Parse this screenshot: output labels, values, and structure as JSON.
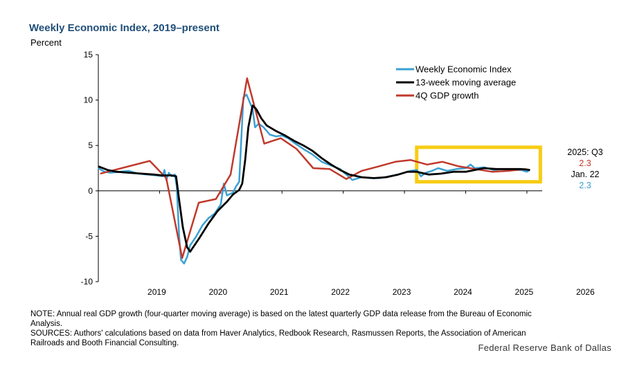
{
  "title": "Weekly Economic Index, 2019–present",
  "note": "NOTE: Annual real GDP growth (four-quarter moving average) is based on the latest quarterly GDP data release from the Bureau of Economic Analysis.",
  "sources": "SOURCES: Authors' calculations based on data from Haver Analytics, Redbook Research, Rasmussen Reports, the Association of American Railroads and Booth Financial Consulting.",
  "credit": "Federal Reserve Bank of Dallas",
  "chart_data": {
    "type": "line",
    "title": "Weekly Economic Index, 2019–present",
    "ylabel": "Percent",
    "xlabel": "",
    "xlim": [
      2018,
      2025.25
    ],
    "ylim": [
      -10,
      15
    ],
    "yticks": [
      -10,
      -5,
      0,
      5,
      10,
      15
    ],
    "xtick_labels": [
      "2019",
      "2020",
      "2021",
      "2022",
      "2023",
      "2024",
      "2025",
      "2026"
    ],
    "xtick_values": [
      2019,
      2020,
      2021,
      2022,
      2023,
      2024,
      2025,
      2026
    ],
    "grid": false,
    "legend_position": "top-right",
    "colors": {
      "wei": "#3aa0d2",
      "ma": "#000000",
      "gdp": "#c0392b",
      "highlight": "#f7cc14"
    },
    "series": [
      {
        "name": "Weekly Economic Index",
        "key": "wei",
        "x": [
          2018.0,
          2018.1,
          2018.2,
          2018.35,
          2018.5,
          2018.65,
          2018.8,
          2018.95,
          2019.05,
          2019.08,
          2019.11,
          2019.15,
          2019.2,
          2019.25,
          2019.28,
          2019.32,
          2019.35,
          2019.4,
          2019.45,
          2019.5,
          2019.6,
          2019.7,
          2019.8,
          2019.9,
          2020.0,
          2020.05,
          2020.1,
          2020.2,
          2020.25,
          2020.3,
          2020.33,
          2020.37,
          2020.42,
          2020.47,
          2020.52,
          2020.56,
          2020.62,
          2020.7,
          2020.8,
          2020.9,
          2021.0,
          2021.1,
          2021.2,
          2021.35,
          2021.5,
          2021.65,
          2021.8,
          2021.95,
          2022.05,
          2022.15,
          2022.3,
          2022.45,
          2022.6,
          2022.75,
          2022.9,
          2023.0,
          2023.1,
          2023.2,
          2023.27,
          2023.35,
          2023.45,
          2023.55,
          2023.7,
          2023.85,
          2024.0,
          2024.08,
          2024.15,
          2024.3,
          2024.45,
          2024.6,
          2024.75,
          2024.9,
          2025.0,
          2025.05
        ],
        "values": [
          2.5,
          2.1,
          2.0,
          2.1,
          2.2,
          1.9,
          1.8,
          1.7,
          1.6,
          2.3,
          1.2,
          2.0,
          1.6,
          1.8,
          0.5,
          -5,
          -7.6,
          -8.0,
          -7.3,
          -6.0,
          -5.0,
          -3.8,
          -3.0,
          -2.5,
          -1.5,
          0.8,
          -0.5,
          -0.2,
          0.5,
          1.0,
          5,
          10.3,
          10.6,
          9.8,
          9.0,
          7.0,
          7.4,
          7.0,
          6.2,
          6.0,
          6.1,
          5.8,
          5.3,
          4.6,
          4.0,
          3.2,
          2.8,
          2.4,
          1.8,
          1.2,
          1.5,
          1.4,
          1.4,
          1.6,
          1.8,
          2.0,
          2.2,
          2.3,
          1.6,
          2.0,
          2.2,
          2.5,
          2.2,
          2.4,
          2.5,
          2.9,
          2.5,
          2.6,
          2.3,
          2.4,
          2.3,
          2.3,
          2.1,
          2.3
        ]
      },
      {
        "name": "13-week moving average",
        "key": "ma",
        "x": [
          2018.0,
          2018.15,
          2018.3,
          2018.5,
          2018.7,
          2018.9,
          2019.05,
          2019.2,
          2019.27,
          2019.32,
          2019.38,
          2019.45,
          2019.5,
          2019.55,
          2019.65,
          2019.8,
          2019.95,
          2020.1,
          2020.2,
          2020.3,
          2020.35,
          2020.4,
          2020.45,
          2020.52,
          2020.58,
          2020.66,
          2020.75,
          2020.9,
          2021.05,
          2021.2,
          2021.35,
          2021.5,
          2021.65,
          2021.8,
          2021.95,
          2022.1,
          2022.3,
          2022.5,
          2022.7,
          2022.9,
          2023.05,
          2023.2,
          2023.4,
          2023.6,
          2023.8,
          2024.0,
          2024.15,
          2024.3,
          2024.5,
          2024.7,
          2024.9,
          2025.05
        ],
        "values": [
          2.7,
          2.3,
          2.1,
          2.0,
          1.9,
          1.8,
          1.7,
          1.7,
          1.6,
          -1,
          -4,
          -6.2,
          -6.7,
          -6.2,
          -5.2,
          -3.6,
          -2.2,
          -1.2,
          -0.4,
          0.1,
          0.8,
          3.5,
          7,
          9.4,
          9.0,
          8.0,
          7.2,
          6.6,
          6.1,
          5.5,
          5.0,
          4.4,
          3.6,
          2.9,
          2.3,
          1.8,
          1.5,
          1.4,
          1.5,
          1.8,
          2.1,
          2.1,
          1.8,
          1.9,
          2.1,
          2.1,
          2.3,
          2.5,
          2.4,
          2.4,
          2.4,
          2.3
        ]
      },
      {
        "name": "4Q GDP growth",
        "key": "gdp",
        "x": [
          2018.03,
          2018.84,
          2019.11,
          2019.37,
          2019.64,
          2019.92,
          2020.16,
          2020.43,
          2020.71,
          2020.98,
          2021.24,
          2021.51,
          2021.78,
          2022.05,
          2022.3,
          2022.58,
          2022.85,
          2023.1,
          2023.37,
          2023.62,
          2023.89,
          2024.16,
          2024.43,
          2024.7,
          2024.97,
          2025.05
        ],
        "values": [
          1.9,
          3.3,
          1.4,
          -7.4,
          -1.3,
          -0.9,
          1.8,
          12.4,
          5.2,
          5.8,
          4.6,
          2.5,
          2.4,
          1.3,
          2.2,
          2.7,
          3.2,
          3.4,
          2.9,
          3.2,
          2.7,
          2.4,
          2.1,
          2.2,
          2.4,
          2.3
        ]
      }
    ],
    "highlight": {
      "x": [
        2023.2,
        2025.22
      ],
      "y": [
        1.0,
        4.8
      ]
    },
    "annotations": {
      "gdp_period": "2025: Q3",
      "gdp_value": "2.3",
      "wei_date": "Jan. 22",
      "wei_value": "2.3"
    }
  }
}
